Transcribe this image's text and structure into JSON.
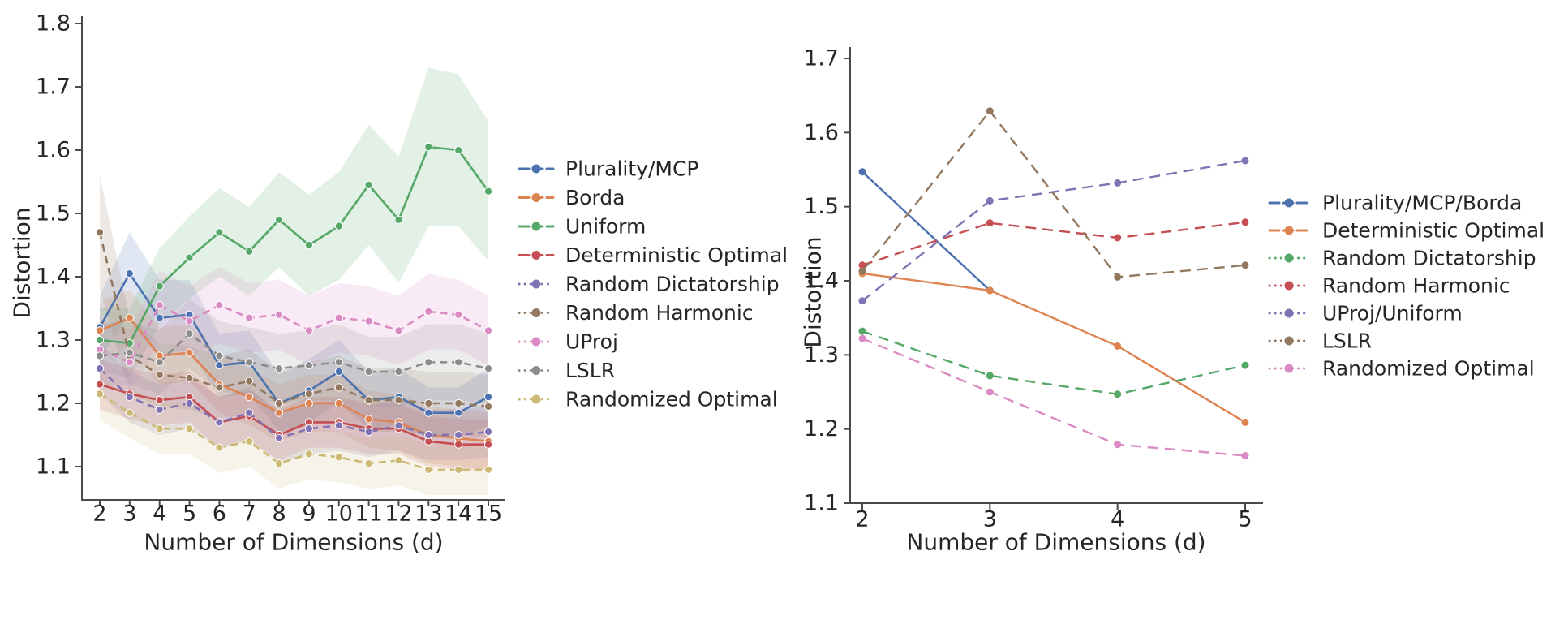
{
  "figure": {
    "background": "#ffffff"
  },
  "chart_data": [
    {
      "id": "left",
      "type": "line",
      "title": "",
      "xlabel": "Number of Dimensions (d)",
      "ylabel": "Distortion",
      "x": [
        2,
        3,
        4,
        5,
        6,
        7,
        8,
        9,
        10,
        11,
        12,
        13,
        14,
        15
      ],
      "yticks": [
        1.1,
        1.2,
        1.3,
        1.4,
        1.5,
        1.6,
        1.7,
        1.8
      ],
      "ylim": [
        1.1,
        1.8
      ],
      "grid": false,
      "legend_position": "right",
      "series": [
        {
          "name": "Plurality/MCP",
          "color": "#4C72B0",
          "line_style": "solid",
          "marker": "circle",
          "values": [
            1.32,
            1.405,
            1.335,
            1.34,
            1.26,
            1.265,
            1.2,
            1.22,
            1.25,
            1.205,
            1.21,
            1.185,
            1.185,
            1.21
          ],
          "band_halfwidth": [
            0.05,
            0.065,
            0.06,
            0.055,
            0.05,
            0.05,
            0.045,
            0.05,
            0.05,
            0.045,
            0.045,
            0.04,
            0.04,
            0.045
          ]
        },
        {
          "name": "Borda",
          "color": "#DD8452",
          "line_style": "solid",
          "marker": "circle",
          "values": [
            1.315,
            1.335,
            1.275,
            1.28,
            1.23,
            1.21,
            1.185,
            1.2,
            1.2,
            1.175,
            1.17,
            1.15,
            1.145,
            1.14
          ],
          "band_halfwidth": [
            0.045,
            0.045,
            0.045,
            0.045,
            0.045,
            0.045,
            0.045,
            0.045,
            0.045,
            0.045,
            0.045,
            0.045,
            0.045,
            0.045
          ]
        },
        {
          "name": "Uniform",
          "color": "#55A868",
          "line_style": "solid",
          "marker": "circle",
          "values": [
            1.3,
            1.295,
            1.385,
            1.43,
            1.47,
            1.44,
            1.49,
            1.45,
            1.48,
            1.545,
            1.49,
            1.605,
            1.6,
            1.535
          ],
          "band_halfwidth": [
            0.05,
            0.055,
            0.06,
            0.065,
            0.07,
            0.07,
            0.075,
            0.08,
            0.085,
            0.095,
            0.1,
            0.125,
            0.12,
            0.11
          ]
        },
        {
          "name": "Deterministic Optimal",
          "color": "#C44E52",
          "line_style": "solid",
          "marker": "circle",
          "values": [
            1.23,
            1.215,
            1.205,
            1.21,
            1.17,
            1.18,
            1.15,
            1.17,
            1.17,
            1.16,
            1.16,
            1.14,
            1.135,
            1.135
          ],
          "band_halfwidth": [
            0.04,
            0.04,
            0.04,
            0.04,
            0.04,
            0.04,
            0.04,
            0.04,
            0.04,
            0.04,
            0.04,
            0.04,
            0.04,
            0.04
          ]
        },
        {
          "name": "Random Dictatorship",
          "color": "#8172B3",
          "line_style": "dashed",
          "marker": "circle",
          "values": [
            1.255,
            1.21,
            1.19,
            1.2,
            1.17,
            1.185,
            1.145,
            1.16,
            1.165,
            1.155,
            1.165,
            1.15,
            1.15,
            1.155
          ],
          "band_halfwidth": [
            0.04,
            0.04,
            0.04,
            0.04,
            0.04,
            0.04,
            0.04,
            0.04,
            0.04,
            0.04,
            0.04,
            0.04,
            0.04,
            0.04
          ]
        },
        {
          "name": "Random Harmonic",
          "color": "#937860",
          "line_style": "dashed",
          "marker": "circle",
          "values": [
            1.47,
            1.275,
            1.245,
            1.24,
            1.225,
            1.235,
            1.2,
            1.215,
            1.225,
            1.205,
            1.205,
            1.2,
            1.2,
            1.195
          ],
          "band_halfwidth": [
            0.09,
            0.06,
            0.05,
            0.05,
            0.05,
            0.05,
            0.05,
            0.05,
            0.05,
            0.05,
            0.05,
            0.05,
            0.05,
            0.05
          ]
        },
        {
          "name": "UProj",
          "color": "#DA8BC3",
          "line_style": "dashed",
          "marker": "circle",
          "values": [
            1.285,
            1.265,
            1.355,
            1.33,
            1.355,
            1.335,
            1.34,
            1.315,
            1.335,
            1.33,
            1.315,
            1.345,
            1.34,
            1.315
          ],
          "band_halfwidth": [
            0.05,
            0.05,
            0.055,
            0.055,
            0.06,
            0.055,
            0.055,
            0.055,
            0.055,
            0.055,
            0.055,
            0.06,
            0.055,
            0.055
          ]
        },
        {
          "name": "LSLR",
          "color": "#8C8C8C",
          "line_style": "dashed",
          "marker": "circle",
          "values": [
            1.275,
            1.28,
            1.265,
            1.31,
            1.275,
            1.265,
            1.255,
            1.26,
            1.265,
            1.25,
            1.25,
            1.265,
            1.265,
            1.255
          ],
          "band_halfwidth": [
            0.05,
            0.05,
            0.05,
            0.055,
            0.055,
            0.055,
            0.055,
            0.055,
            0.06,
            0.055,
            0.055,
            0.06,
            0.06,
            0.055
          ]
        },
        {
          "name": "Randomized Optimal",
          "color": "#CCB974",
          "line_style": "dashed",
          "marker": "circle",
          "values": [
            1.215,
            1.185,
            1.16,
            1.16,
            1.13,
            1.14,
            1.105,
            1.12,
            1.115,
            1.105,
            1.11,
            1.095,
            1.095,
            1.095
          ],
          "band_halfwidth": [
            0.04,
            0.04,
            0.04,
            0.04,
            0.04,
            0.04,
            0.04,
            0.04,
            0.04,
            0.04,
            0.04,
            0.04,
            0.04,
            0.04
          ]
        }
      ]
    },
    {
      "id": "right",
      "type": "line",
      "title": "",
      "xlabel": "Number of Dimensions (d)",
      "ylabel": "Distortion",
      "x": [
        2,
        3,
        4,
        5
      ],
      "yticks": [
        1.1,
        1.2,
        1.3,
        1.4,
        1.5,
        1.6,
        1.7
      ],
      "ylim": [
        1.1,
        1.7
      ],
      "grid": false,
      "legend_position": "right",
      "series": [
        {
          "name": "Plurality/MCP/Borda",
          "color": "#4C72B0",
          "line_style": "solid",
          "marker": "circle",
          "values": [
            1.547,
            1.387,
            null,
            null
          ]
        },
        {
          "name": "Deterministic Optimal",
          "color": "#DD8452",
          "line_style": "solid",
          "marker": "circle",
          "values": [
            1.41,
            1.387,
            1.312,
            1.209
          ]
        },
        {
          "name": "Random Dictatorship",
          "color": "#55A868",
          "line_style": "dashed",
          "marker": "circle",
          "values": [
            1.332,
            1.272,
            1.247,
            1.286
          ]
        },
        {
          "name": "Random Harmonic",
          "color": "#C44E52",
          "line_style": "dashed",
          "marker": "circle",
          "values": [
            1.421,
            1.478,
            1.458,
            1.479
          ]
        },
        {
          "name": "UProj/Uniform",
          "color": "#8172B3",
          "line_style": "dashed",
          "marker": "circle",
          "values": [
            1.373,
            1.508,
            1.532,
            1.562
          ]
        },
        {
          "name": "LSLR",
          "color": "#937860",
          "line_style": "dashed",
          "marker": "circle",
          "values": [
            1.413,
            1.629,
            1.405,
            1.421
          ]
        },
        {
          "name": "Randomized Optimal",
          "color": "#DA8BC3",
          "line_style": "dashed",
          "marker": "circle",
          "values": [
            1.322,
            1.25,
            1.179,
            1.164
          ]
        }
      ]
    }
  ]
}
